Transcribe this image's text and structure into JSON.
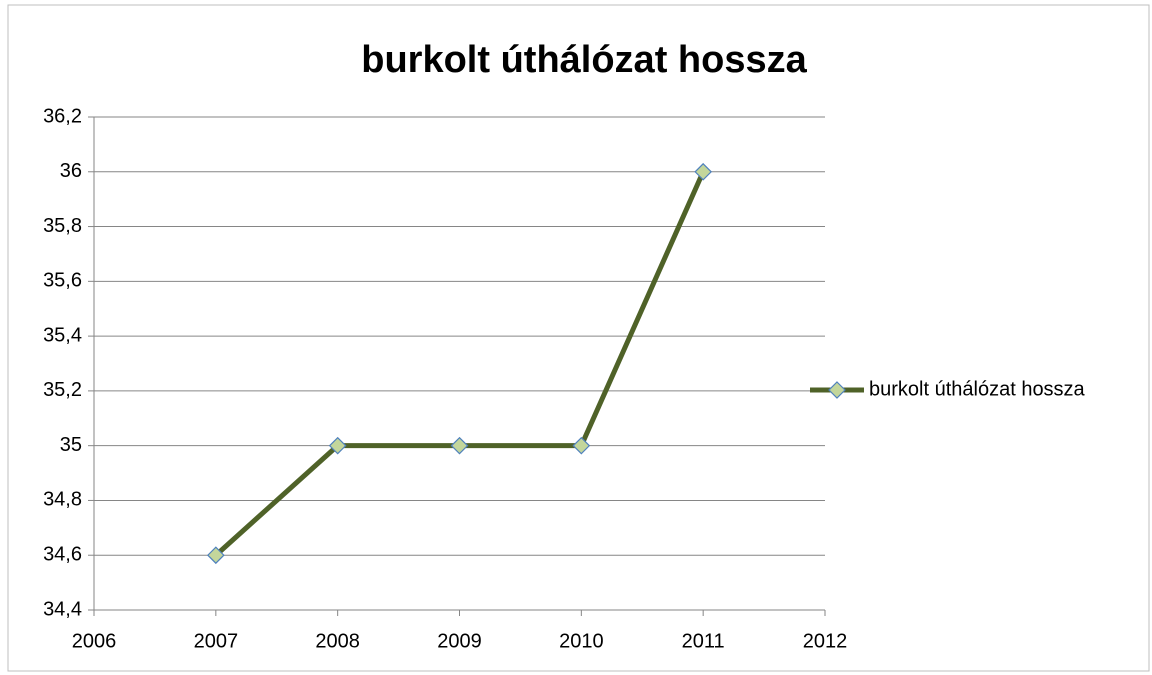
{
  "chart_data": {
    "type": "line",
    "title": "burkolt úthálózat hossza",
    "x": [
      2007,
      2008,
      2009,
      2010,
      2011
    ],
    "series": [
      {
        "name": "burkolt úthálózat hossza",
        "color": "#4f6228",
        "marker_fill": "#c3d69b",
        "marker_stroke": "#4f81bd",
        "values": [
          34.6,
          35,
          35,
          35,
          36
        ]
      }
    ],
    "xlim": [
      2006,
      2012
    ],
    "xticks": [
      2006,
      2007,
      2008,
      2009,
      2010,
      2011,
      2012
    ],
    "ylim": [
      34.4,
      36.2
    ],
    "yticks": [
      {
        "value": 34.4,
        "label": "34,4"
      },
      {
        "value": 34.6,
        "label": "34,6"
      },
      {
        "value": 34.8,
        "label": "34,8"
      },
      35,
      {
        "value": 35.2,
        "label": "35,2"
      },
      {
        "value": 35.4,
        "label": "35,4"
      },
      {
        "value": 35.6,
        "label": "35,6"
      },
      {
        "value": 35.8,
        "label": "35,8"
      },
      36,
      {
        "value": 36.2,
        "label": "36,2"
      }
    ],
    "grid": true,
    "legend": "right"
  }
}
